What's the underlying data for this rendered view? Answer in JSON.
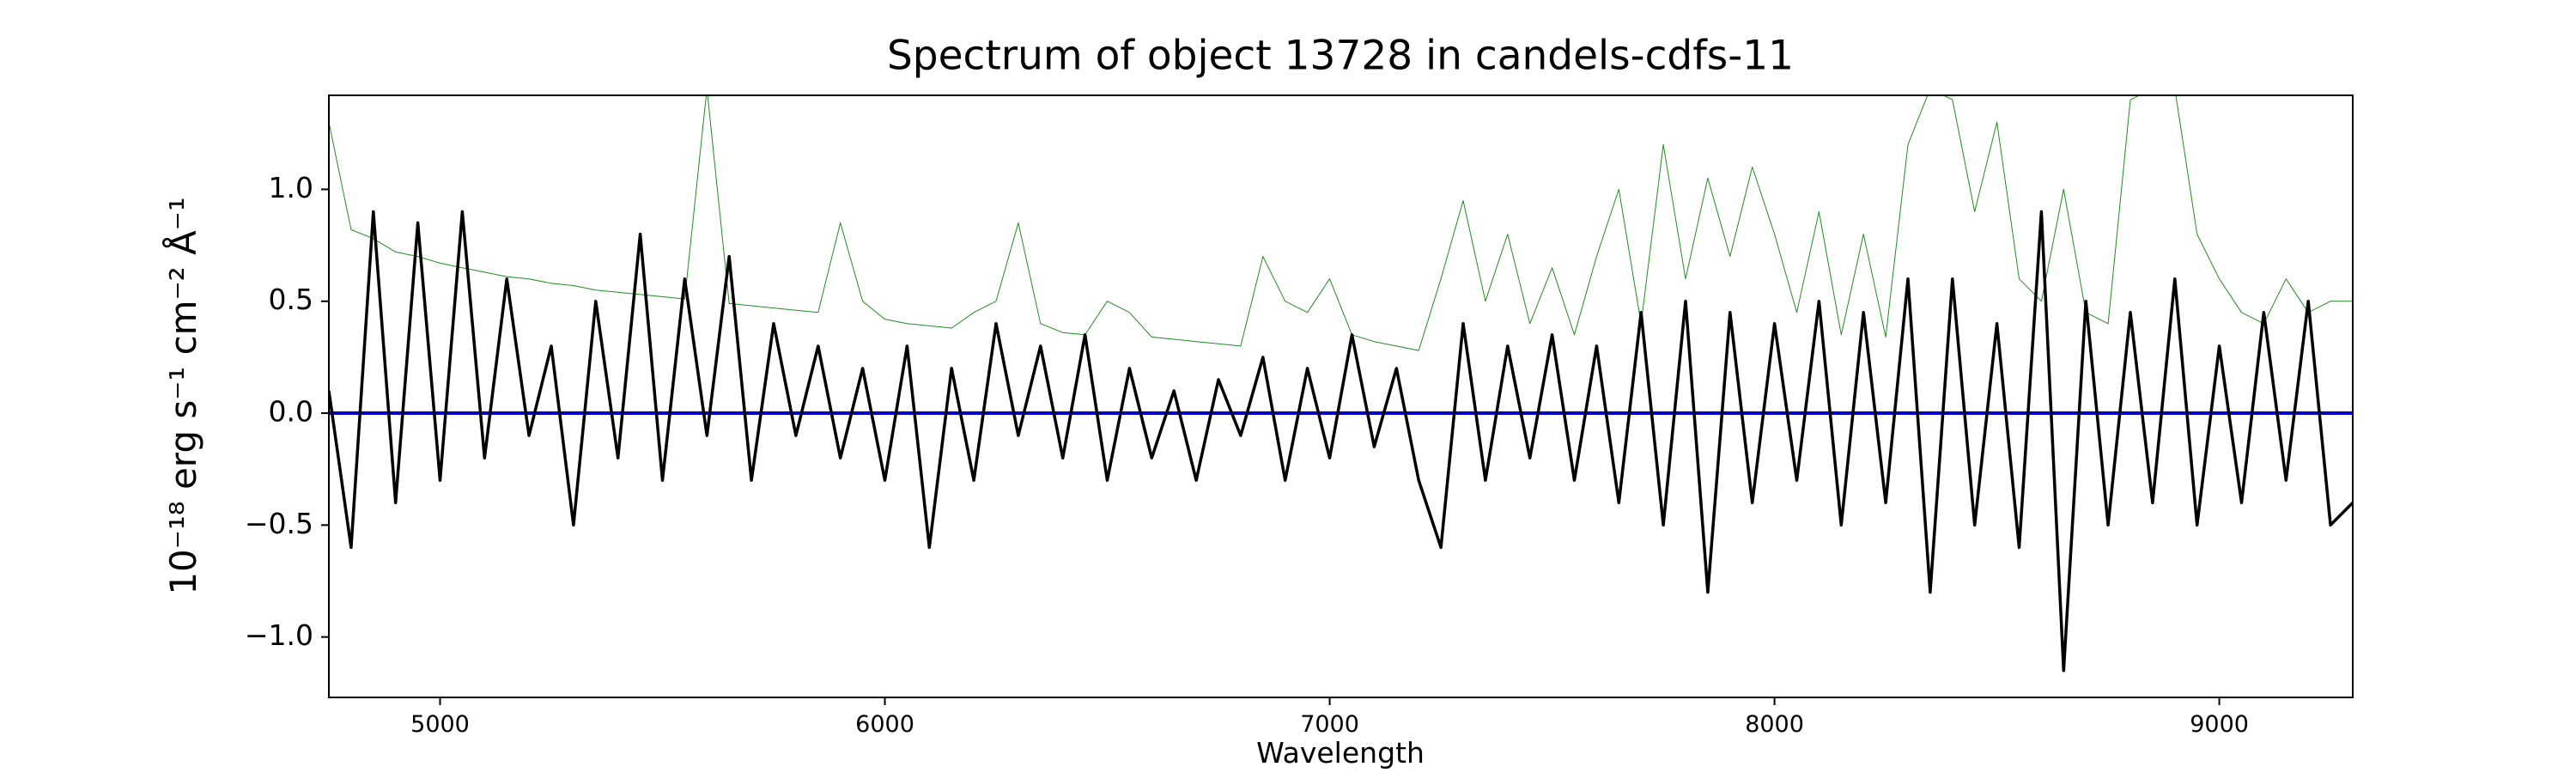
{
  "chart_data": {
    "type": "line",
    "title": "Spectrum of object 13728 in candels-cdfs-11",
    "xlabel": "Wavelength",
    "ylabel": "10⁻¹⁸ erg s⁻¹ cm⁻² Å⁻¹",
    "x": [
      4750,
      4800,
      4850,
      4900,
      4950,
      5000,
      5050,
      5100,
      5150,
      5200,
      5250,
      5300,
      5350,
      5400,
      5450,
      5500,
      5550,
      5600,
      5650,
      5700,
      5750,
      5800,
      5850,
      5900,
      5950,
      6000,
      6050,
      6100,
      6150,
      6200,
      6250,
      6300,
      6350,
      6400,
      6450,
      6500,
      6550,
      6600,
      6650,
      6700,
      6750,
      6800,
      6850,
      6900,
      6950,
      7000,
      7050,
      7100,
      7150,
      7200,
      7250,
      7300,
      7350,
      7400,
      7450,
      7500,
      7550,
      7600,
      7650,
      7700,
      7750,
      7800,
      7850,
      7900,
      7950,
      8000,
      8050,
      8100,
      8150,
      8200,
      8250,
      8300,
      8350,
      8400,
      8450,
      8500,
      8550,
      8600,
      8650,
      8700,
      8750,
      8800,
      8850,
      8900,
      8950,
      9000,
      9050,
      9100,
      9150,
      9200,
      9250,
      9300
    ],
    "series": [
      {
        "color": "#228b22",
        "width": 1,
        "values": [
          1.3,
          0.82,
          0.78,
          0.72,
          0.7,
          0.67,
          0.65,
          0.63,
          0.61,
          0.6,
          0.58,
          0.57,
          0.55,
          0.54,
          0.53,
          0.52,
          0.51,
          1.45,
          0.49,
          0.48,
          0.47,
          0.46,
          0.45,
          0.85,
          0.5,
          0.42,
          0.4,
          0.39,
          0.38,
          0.45,
          0.5,
          0.85,
          0.4,
          0.36,
          0.35,
          0.5,
          0.45,
          0.34,
          0.33,
          0.32,
          0.31,
          0.3,
          0.7,
          0.5,
          0.45,
          0.6,
          0.35,
          0.32,
          0.3,
          0.28,
          0.6,
          0.95,
          0.5,
          0.8,
          0.4,
          0.65,
          0.35,
          0.7,
          1.0,
          0.4,
          1.2,
          0.6,
          1.05,
          0.7,
          1.1,
          0.8,
          0.45,
          0.9,
          0.35,
          0.8,
          0.34,
          1.2,
          1.45,
          1.4,
          0.9,
          1.3,
          0.6,
          0.5,
          1.0,
          0.45,
          0.4,
          1.4,
          1.45,
          1.45,
          0.8,
          0.6,
          0.45,
          0.4,
          0.6,
          0.45,
          0.5,
          0.5
        ]
      },
      {
        "color": "#0000cd",
        "width": 4,
        "values": [
          0,
          0,
          0,
          0,
          0,
          0,
          0,
          0,
          0,
          0,
          0,
          0,
          0,
          0,
          0,
          0,
          0,
          0,
          0,
          0,
          0,
          0,
          0,
          0,
          0,
          0,
          0,
          0,
          0,
          0,
          0,
          0,
          0,
          0,
          0,
          0,
          0,
          0,
          0,
          0,
          0,
          0,
          0,
          0,
          0,
          0,
          0,
          0,
          0,
          0,
          0,
          0,
          0,
          0,
          0,
          0,
          0,
          0,
          0,
          0,
          0,
          0,
          0,
          0,
          0,
          0,
          0,
          0,
          0,
          0,
          0,
          0,
          0,
          0,
          0,
          0,
          0,
          0,
          0,
          0,
          0,
          0,
          0,
          0,
          0,
          0,
          0,
          0,
          0,
          0,
          0,
          0
        ]
      },
      {
        "color": "#000000",
        "width": 3.5,
        "values": [
          0.1,
          -0.6,
          0.9,
          -0.4,
          0.85,
          -0.3,
          0.9,
          -0.2,
          0.6,
          -0.1,
          0.3,
          -0.5,
          0.5,
          -0.2,
          0.8,
          -0.3,
          0.6,
          -0.1,
          0.7,
          -0.3,
          0.4,
          -0.1,
          0.3,
          -0.2,
          0.2,
          -0.3,
          0.3,
          -0.6,
          0.2,
          -0.3,
          0.4,
          -0.1,
          0.3,
          -0.2,
          0.35,
          -0.3,
          0.2,
          -0.2,
          0.1,
          -0.3,
          0.15,
          -0.1,
          0.25,
          -0.3,
          0.2,
          -0.2,
          0.35,
          -0.15,
          0.2,
          -0.3,
          -0.6,
          0.4,
          -0.3,
          0.3,
          -0.2,
          0.35,
          -0.3,
          0.3,
          -0.4,
          0.45,
          -0.5,
          0.5,
          -0.8,
          0.45,
          -0.4,
          0.4,
          -0.3,
          0.5,
          -0.5,
          0.45,
          -0.4,
          0.6,
          -0.8,
          0.6,
          -0.5,
          0.4,
          -0.6,
          0.9,
          -1.15,
          0.5,
          -0.5,
          0.45,
          -0.4,
          0.6,
          -0.5,
          0.3,
          -0.4,
          0.45,
          -0.3,
          0.5,
          -0.5,
          -0.4
        ]
      }
    ],
    "xlim": [
      4750,
      9300
    ],
    "ylim": [
      -1.27,
      1.42
    ],
    "xticks": [
      5000,
      6000,
      7000,
      8000,
      9000
    ],
    "yticks": [
      {
        "value": -1.0,
        "label": "−1.0"
      },
      {
        "value": -0.5,
        "label": "−0.5"
      },
      {
        "value": 0.0,
        "label": "0.0"
      },
      {
        "value": 0.5,
        "label": "0.5"
      },
      {
        "value": 1.0,
        "label": "1.0"
      }
    ],
    "grid": false
  }
}
